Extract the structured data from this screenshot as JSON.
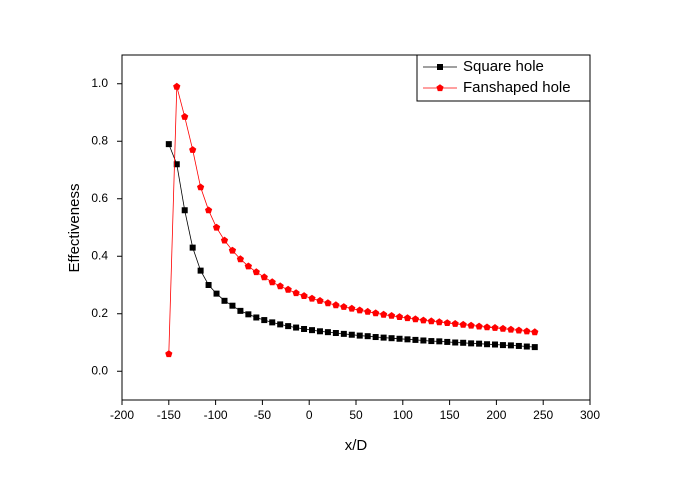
{
  "chart_data": {
    "type": "line",
    "xlabel": "x/D",
    "ylabel": "Effectiveness",
    "x": [
      -150,
      -141.5,
      -133,
      -124.5,
      -116,
      -107.5,
      -99,
      -90.5,
      -82,
      -73.5,
      -65,
      -56.5,
      -48,
      -39.5,
      -31,
      -22.5,
      -14,
      -5.5,
      3,
      11.5,
      20,
      28.5,
      37,
      45.5,
      54,
      62.5,
      71,
      79.5,
      88,
      96.5,
      105,
      113.5,
      122,
      130.5,
      139,
      147.5,
      156,
      164.5,
      173,
      181.5,
      190,
      198.5,
      207,
      215.5,
      224,
      232.5,
      241
    ],
    "series": [
      {
        "name": "Square hole",
        "color": "#000000",
        "marker": "square",
        "values": [
          0.79,
          0.72,
          0.56,
          0.43,
          0.35,
          0.3,
          0.27,
          0.245,
          0.228,
          0.21,
          0.198,
          0.187,
          0.178,
          0.17,
          0.163,
          0.157,
          0.152,
          0.147,
          0.143,
          0.139,
          0.136,
          0.133,
          0.13,
          0.127,
          0.124,
          0.122,
          0.119,
          0.117,
          0.115,
          0.113,
          0.111,
          0.109,
          0.107,
          0.105,
          0.104,
          0.102,
          0.1,
          0.099,
          0.097,
          0.096,
          0.094,
          0.093,
          0.091,
          0.09,
          0.088,
          0.086,
          0.084
        ]
      },
      {
        "name": "Fanshaped hole",
        "color": "#ff0000",
        "marker": "pentagon",
        "values": [
          0.06,
          0.99,
          0.885,
          0.77,
          0.64,
          0.56,
          0.5,
          0.455,
          0.42,
          0.39,
          0.365,
          0.345,
          0.327,
          0.31,
          0.296,
          0.284,
          0.272,
          0.262,
          0.253,
          0.245,
          0.237,
          0.23,
          0.224,
          0.218,
          0.212,
          0.207,
          0.202,
          0.197,
          0.193,
          0.189,
          0.185,
          0.181,
          0.177,
          0.174,
          0.171,
          0.168,
          0.165,
          0.162,
          0.159,
          0.156,
          0.153,
          0.151,
          0.148,
          0.145,
          0.142,
          0.139,
          0.136
        ]
      }
    ],
    "xlim": [
      -200,
      300
    ],
    "xticks": [
      -200,
      -150,
      -100,
      -50,
      0,
      50,
      100,
      150,
      200,
      250,
      300
    ],
    "ylim": [
      -0.1,
      1.1
    ],
    "yticks": [
      {
        "value": 0,
        "label": "0.0"
      },
      {
        "value": 0.2,
        "label": "0.2"
      },
      {
        "value": 0.4,
        "label": "0.4"
      },
      {
        "value": 0.6,
        "label": "0.6"
      },
      {
        "value": 0.8,
        "label": "0.8"
      },
      {
        "value": 1,
        "label": "1.0"
      }
    ],
    "grid": false,
    "legend": "upper right"
  }
}
